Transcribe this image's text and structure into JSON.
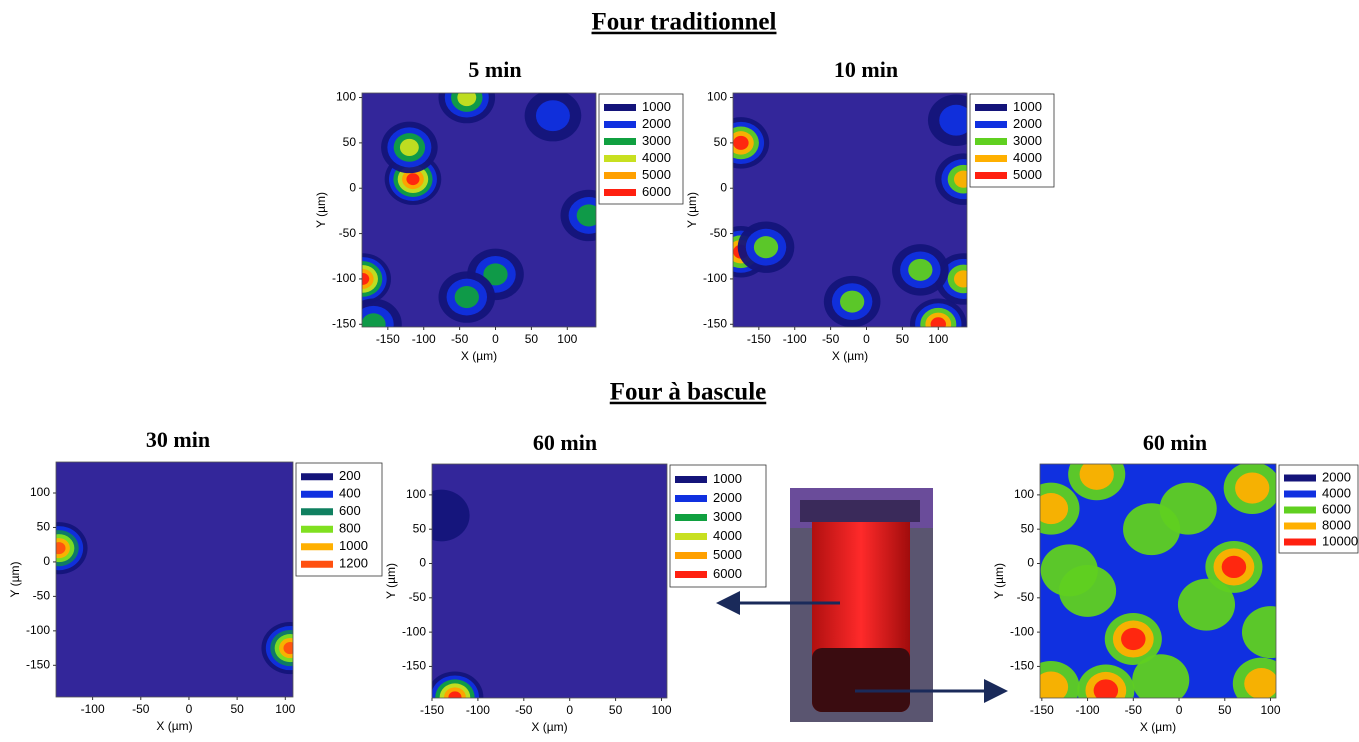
{
  "headings": [
    "Four traditionnel",
    "Four à bascule"
  ],
  "chart_data": [
    {
      "type": "contour",
      "title": "5 min",
      "xlabel": "X (µm)",
      "ylabel": "Y (µm)",
      "xlim": [
        -186,
        140
      ],
      "ylim": [
        -153,
        105
      ],
      "xticks": [
        -150,
        -100,
        -50,
        0,
        50,
        100
      ],
      "yticks": [
        -150,
        -100,
        -50,
        0,
        50,
        100
      ],
      "base_value": 800,
      "series": [
        {
          "name": "1000",
          "color": "#14147a"
        },
        {
          "name": "2000",
          "color": "#1030e0"
        },
        {
          "name": "3000",
          "color": "#10a040"
        },
        {
          "name": "4000",
          "color": "#c8e020"
        },
        {
          "name": "5000",
          "color": "#ffa000"
        },
        {
          "name": "6000",
          "color": "#ff2010"
        }
      ],
      "peaks": [
        {
          "x": -115,
          "y": 10,
          "value": 6000
        },
        {
          "x": -185,
          "y": -100,
          "value": 6000
        },
        {
          "x": -40,
          "y": 100,
          "value": 4000
        },
        {
          "x": -120,
          "y": 45,
          "value": 4000
        },
        {
          "x": 0,
          "y": -95,
          "value": 3500
        },
        {
          "x": -40,
          "y": -120,
          "value": 3000
        },
        {
          "x": 130,
          "y": -30,
          "value": 3000
        },
        {
          "x": 80,
          "y": 80,
          "value": 2500
        },
        {
          "x": -170,
          "y": -150,
          "value": 3000
        }
      ]
    },
    {
      "type": "contour",
      "title": "10 min",
      "xlabel": "X (µm)",
      "ylabel": "Y (µm)",
      "xlim": [
        -186,
        140
      ],
      "ylim": [
        -153,
        105
      ],
      "xticks": [
        -150,
        -100,
        -50,
        0,
        50,
        100
      ],
      "yticks": [
        -150,
        -100,
        -50,
        0,
        50,
        100
      ],
      "base_value": 800,
      "series": [
        {
          "name": "1000",
          "color": "#14147a"
        },
        {
          "name": "2000",
          "color": "#1030e0"
        },
        {
          "name": "3000",
          "color": "#60d020"
        },
        {
          "name": "4000",
          "color": "#ffb000"
        },
        {
          "name": "5000",
          "color": "#ff2010"
        }
      ],
      "peaks": [
        {
          "x": -175,
          "y": 50,
          "value": 5000
        },
        {
          "x": -175,
          "y": -70,
          "value": 5000
        },
        {
          "x": 100,
          "y": -150,
          "value": 5000
        },
        {
          "x": 135,
          "y": 10,
          "value": 4000
        },
        {
          "x": 135,
          "y": -100,
          "value": 4000
        },
        {
          "x": -140,
          "y": -65,
          "value": 3500
        },
        {
          "x": -20,
          "y": -125,
          "value": 3000
        },
        {
          "x": 75,
          "y": -90,
          "value": 3000
        },
        {
          "x": 125,
          "y": 75,
          "value": 2500
        }
      ]
    },
    {
      "type": "contour",
      "title": "30 min",
      "xlabel": "X (µm)",
      "ylabel": "Y (µm)",
      "xlim": [
        -138,
        108
      ],
      "ylim": [
        -196,
        145
      ],
      "xticks": [
        -100,
        -50,
        0,
        50,
        100
      ],
      "yticks": [
        -150,
        -100,
        -50,
        0,
        50,
        100
      ],
      "base_value": 150,
      "series": [
        {
          "name": "200",
          "color": "#14147a"
        },
        {
          "name": "400",
          "color": "#1030e0"
        },
        {
          "name": "600",
          "color": "#108060"
        },
        {
          "name": "800",
          "color": "#80e020"
        },
        {
          "name": "1000",
          "color": "#ffb000"
        },
        {
          "name": "1200",
          "color": "#ff5010"
        }
      ],
      "peaks": [
        {
          "x": -135,
          "y": 20,
          "value": 1200
        },
        {
          "x": 105,
          "y": -125,
          "value": 1200
        }
      ]
    },
    {
      "type": "contour",
      "title": "60 min",
      "xlabel": "X (µm)",
      "ylabel": "Y (µm)",
      "xlim": [
        -150,
        106
      ],
      "ylim": [
        -196,
        145
      ],
      "xticks": [
        -150,
        -100,
        -50,
        0,
        50,
        100
      ],
      "yticks": [
        -150,
        -100,
        -50,
        0,
        50,
        100
      ],
      "base_value": 800,
      "series": [
        {
          "name": "1000",
          "color": "#14147a"
        },
        {
          "name": "2000",
          "color": "#1030e0"
        },
        {
          "name": "3000",
          "color": "#10a040"
        },
        {
          "name": "4000",
          "color": "#c8e020"
        },
        {
          "name": "5000",
          "color": "#ffa000"
        },
        {
          "name": "6000",
          "color": "#ff2010"
        }
      ],
      "peaks": [
        {
          "x": -125,
          "y": -195,
          "value": 6000
        },
        {
          "x": -140,
          "y": 70,
          "value": 1500
        }
      ]
    },
    {
      "type": "contour",
      "title": "60 min",
      "xlabel": "X (µm)",
      "ylabel": "Y (µm)",
      "xlim": [
        -152,
        106
      ],
      "ylim": [
        -196,
        145
      ],
      "xticks": [
        -150,
        -100,
        -50,
        0,
        50,
        100
      ],
      "yticks": [
        -150,
        -100,
        -50,
        0,
        50,
        100
      ],
      "base_value": 4500,
      "series": [
        {
          "name": "2000",
          "color": "#14147a"
        },
        {
          "name": "4000",
          "color": "#1030e0"
        },
        {
          "name": "6000",
          "color": "#60d020"
        },
        {
          "name": "8000",
          "color": "#ffb000"
        },
        {
          "name": "10000",
          "color": "#ff2010"
        }
      ],
      "peaks": [
        {
          "x": 60,
          "y": -5,
          "value": 10000
        },
        {
          "x": -50,
          "y": -110,
          "value": 10000
        },
        {
          "x": -80,
          "y": -185,
          "value": 10000
        },
        {
          "x": -90,
          "y": 130,
          "value": 8000
        },
        {
          "x": -140,
          "y": 80,
          "value": 8000
        },
        {
          "x": -140,
          "y": -180,
          "value": 8000
        },
        {
          "x": 90,
          "y": -175,
          "value": 9000
        },
        {
          "x": 10,
          "y": 80,
          "value": 7000
        },
        {
          "x": 80,
          "y": 110,
          "value": 8000
        },
        {
          "x": -30,
          "y": 50,
          "value": 6500
        },
        {
          "x": -100,
          "y": -40,
          "value": 7000
        },
        {
          "x": 30,
          "y": -60,
          "value": 6500
        },
        {
          "x": 100,
          "y": -100,
          "value": 7000
        },
        {
          "x": -120,
          "y": -10,
          "value": 6500
        },
        {
          "x": -20,
          "y": -170,
          "value": 7000
        }
      ]
    }
  ]
}
